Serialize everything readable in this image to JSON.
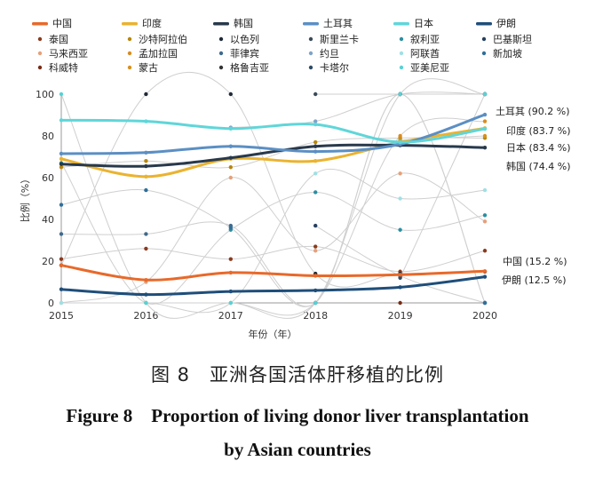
{
  "chart_data": {
    "type": "line",
    "title": "",
    "xlabel": "年份（年）",
    "ylabel": "比例（%）",
    "x": [
      2015,
      2016,
      2017,
      2018,
      2019,
      2020
    ],
    "ylim": [
      0,
      100
    ],
    "yticks": [
      0,
      20,
      40,
      60,
      80,
      100
    ],
    "grid": false,
    "legend": "top",
    "highlighted_series": [
      {
        "name": "中国",
        "color": "#e8692a",
        "values": [
          18,
          11,
          14.5,
          13,
          13.5,
          15.2
        ],
        "end_label": "中国 (15.2 %)"
      },
      {
        "name": "印度",
        "color": "#eab330",
        "values": [
          69,
          60.5,
          69,
          68,
          77,
          83.7
        ],
        "end_label": "印度 (83.7 %)"
      },
      {
        "name": "韩国",
        "color": "#28394c",
        "values": [
          66.5,
          65.5,
          69.5,
          75,
          75.5,
          74.4
        ],
        "end_label": "韩国 (74.4 %)"
      },
      {
        "name": "土耳其",
        "color": "#5b8fc4",
        "values": [
          71.5,
          72,
          75,
          72.5,
          76,
          90.2
        ],
        "end_label": "土耳其 (90.2 %)"
      },
      {
        "name": "日本",
        "color": "#5fd6d9",
        "values": [
          87.5,
          87,
          83.5,
          85.5,
          77,
          83.4
        ],
        "end_label": "日本 (83.4 %)"
      },
      {
        "name": "伊朗",
        "color": "#1f4e7a",
        "values": [
          6.5,
          4,
          5.5,
          6,
          7.5,
          12.5
        ],
        "end_label": "伊朗 (12.5 %)"
      }
    ],
    "other_series": [
      {
        "name": "泰国",
        "color": "#8b3a1e",
        "values": [
          21,
          26,
          21,
          27,
          15,
          25
        ]
      },
      {
        "name": "沙特阿拉伯",
        "color": "#b8860b",
        "values": [
          65,
          68,
          65,
          77,
          79,
          79
        ]
      },
      {
        "name": "以色列",
        "color": "#1f2a36",
        "values": [
          18,
          100,
          100,
          14,
          14,
          15
        ]
      },
      {
        "name": "斯里兰卡",
        "color": "#3b4a5a",
        "values": [
          null,
          null,
          null,
          100,
          100,
          100
        ]
      },
      {
        "name": "叙利亚",
        "color": "#2a8fa0",
        "values": [
          67,
          0,
          35,
          53,
          35,
          42
        ]
      },
      {
        "name": "巴基斯坦",
        "color": "#26405e",
        "values": [
          null,
          null,
          null,
          37,
          13,
          0
        ]
      },
      {
        "name": "马来西亚",
        "color": "#e6a07a",
        "values": [
          0,
          10,
          60,
          25,
          62,
          39
        ]
      },
      {
        "name": "孟加拉国",
        "color": "#d98c1f",
        "values": [
          null,
          0,
          0,
          0,
          80,
          87
        ]
      },
      {
        "name": "菲律宾",
        "color": "#3f6a8c",
        "values": [
          33,
          33,
          37,
          0,
          100,
          0
        ]
      },
      {
        "name": "约旦",
        "color": "#7fa3c8",
        "values": [
          null,
          null,
          84,
          87,
          100,
          100
        ]
      },
      {
        "name": "阿联酋",
        "color": "#9ee0e6",
        "values": [
          0,
          0,
          0,
          62,
          50,
          54
        ]
      },
      {
        "name": "新加坡",
        "color": "#2f6f9a",
        "values": [
          47,
          54,
          36,
          0,
          100,
          0
        ]
      },
      {
        "name": "科威特",
        "color": "#7a2a14",
        "values": [
          null,
          null,
          null,
          null,
          0,
          null
        ]
      },
      {
        "name": "蒙古",
        "color": "#d9901a",
        "values": [
          null,
          null,
          null,
          null,
          78,
          80
        ]
      },
      {
        "name": "格鲁吉亚",
        "color": "#333333",
        "values": [
          null,
          null,
          null,
          null,
          100,
          100
        ]
      },
      {
        "name": "卡塔尔",
        "color": "#2d4a66",
        "values": [
          null,
          null,
          null,
          null,
          12,
          100
        ]
      },
      {
        "name": "亚美尼亚",
        "color": "#56d2d6",
        "values": [
          100,
          0,
          0,
          0,
          100,
          100
        ]
      }
    ]
  },
  "caption": {
    "cn": "图 8　亚洲各国活体肝移植的比例",
    "en_line1": "Figure 8　Proportion of living donor liver transplantation",
    "en_line2": "by Asian countries"
  }
}
